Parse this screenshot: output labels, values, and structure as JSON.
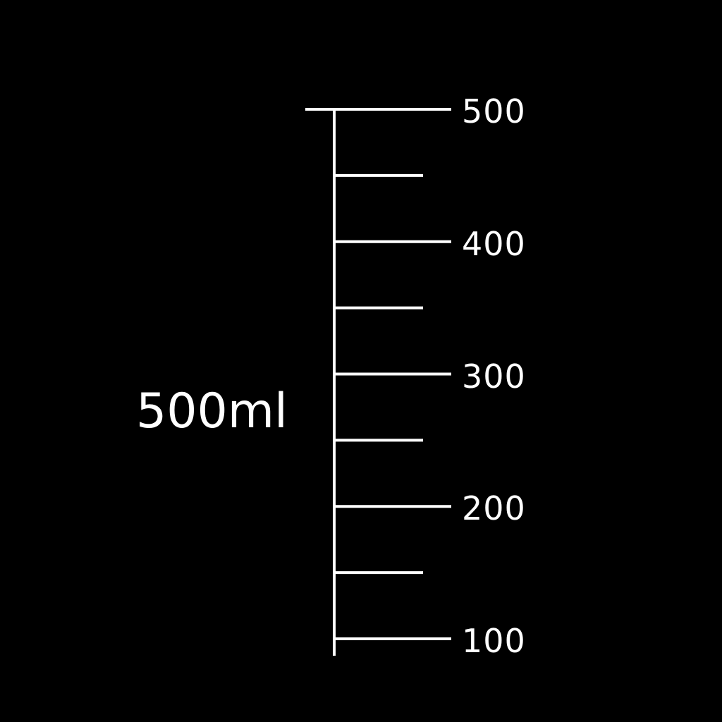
{
  "colors": {
    "background": "#000000",
    "foreground": "#ffffff"
  },
  "capacity_label": "500ml",
  "scale": {
    "min": 100,
    "max": 500,
    "major_step": 100,
    "minor_step": 50,
    "major_ticks": [
      {
        "value": 500,
        "label": "500"
      },
      {
        "value": 400,
        "label": "400"
      },
      {
        "value": 300,
        "label": "300"
      },
      {
        "value": 200,
        "label": "200"
      },
      {
        "value": 100,
        "label": "100"
      }
    ],
    "minor_ticks": [
      450,
      350,
      250,
      150
    ]
  }
}
